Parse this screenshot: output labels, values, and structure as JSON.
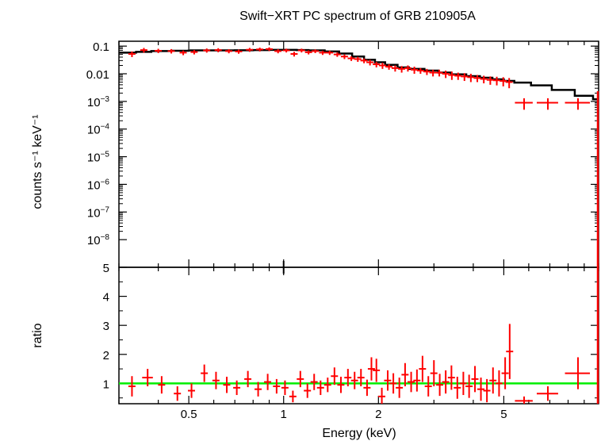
{
  "chart_data": [
    {
      "type": "scatter",
      "title": "Swift−XRT PC spectrum of GRB 210905A",
      "xlabel": "Energy (keV)",
      "ylabel": "counts s⁻¹ keV⁻¹",
      "xscale": "log",
      "yscale": "log",
      "xlim": [
        0.3,
        10
      ],
      "ylim": [
        1e-09,
        0.15
      ],
      "x_ticks": [
        0.5,
        1,
        2,
        5
      ],
      "x_tick_labels": [
        "0.5",
        "1",
        "2",
        "5"
      ],
      "y_ticks": [
        0.1,
        0.01,
        0.001,
        0.0001,
        1e-05,
        1e-06,
        1e-07,
        1e-08
      ],
      "y_tick_labels": [
        {
          "base": "0.1",
          "exp": ""
        },
        {
          "base": "0.01",
          "exp": ""
        },
        {
          "base": "10",
          "exp": "−3"
        },
        {
          "base": "10",
          "exp": "−4"
        },
        {
          "base": "10",
          "exp": "−5"
        },
        {
          "base": "10",
          "exp": "−6"
        },
        {
          "base": "10",
          "exp": "−7"
        },
        {
          "base": "10",
          "exp": "−8"
        }
      ],
      "series": [
        {
          "kind": "data",
          "color": "#ff0000",
          "points": [
            [
              0.33,
              0.052,
              0.02,
              0.012
            ],
            [
              0.36,
              0.072,
              0.02,
              0.014
            ],
            [
              0.4,
              0.068,
              0.02,
              0.012
            ],
            [
              0.44,
              0.066,
              0.02,
              0.012
            ],
            [
              0.48,
              0.058,
              0.02,
              0.011
            ],
            [
              0.52,
              0.061,
              0.02,
              0.011
            ],
            [
              0.57,
              0.07,
              0.02,
              0.012
            ],
            [
              0.62,
              0.072,
              0.02,
              0.012
            ],
            [
              0.67,
              0.066,
              0.02,
              0.011
            ],
            [
              0.72,
              0.064,
              0.02,
              0.011
            ],
            [
              0.78,
              0.074,
              0.02,
              0.012
            ],
            [
              0.84,
              0.076,
              0.02,
              0.012
            ],
            [
              0.9,
              0.078,
              0.02,
              0.012
            ],
            [
              0.96,
              0.066,
              0.02,
              0.011
            ],
            [
              1.02,
              0.07,
              0.02,
              0.011
            ],
            [
              1.08,
              0.052,
              0.02,
              0.01
            ],
            [
              1.14,
              0.07,
              0.02,
              0.011
            ],
            [
              1.2,
              0.06,
              0.02,
              0.01
            ],
            [
              1.26,
              0.066,
              0.02,
              0.01
            ],
            [
              1.33,
              0.058,
              0.02,
              0.01
            ],
            [
              1.4,
              0.058,
              0.02,
              0.01
            ],
            [
              1.48,
              0.05,
              0.02,
              0.009
            ],
            [
              1.56,
              0.042,
              0.02,
              0.008
            ],
            [
              1.64,
              0.036,
              0.02,
              0.007
            ],
            [
              1.72,
              0.034,
              0.02,
              0.007
            ],
            [
              1.8,
              0.03,
              0.02,
              0.006
            ],
            [
              1.88,
              0.026,
              0.02,
              0.006
            ],
            [
              1.97,
              0.022,
              0.02,
              0.005
            ],
            [
              2.06,
              0.02,
              0.02,
              0.005
            ],
            [
              2.16,
              0.018,
              0.02,
              0.004
            ],
            [
              2.26,
              0.016,
              0.02,
              0.004
            ],
            [
              2.37,
              0.015,
              0.02,
              0.004
            ],
            [
              2.48,
              0.016,
              0.02,
              0.004
            ],
            [
              2.6,
              0.014,
              0.02,
              0.004
            ],
            [
              2.72,
              0.013,
              0.02,
              0.003
            ],
            [
              2.85,
              0.012,
              0.02,
              0.003
            ],
            [
              2.98,
              0.011,
              0.02,
              0.003
            ],
            [
              3.12,
              0.011,
              0.02,
              0.003
            ],
            [
              3.27,
              0.01,
              0.02,
              0.003
            ],
            [
              3.42,
              0.009,
              0.02,
              0.003
            ],
            [
              3.58,
              0.0085,
              0.02,
              0.0025
            ],
            [
              3.75,
              0.008,
              0.02,
              0.0025
            ],
            [
              3.93,
              0.0075,
              0.02,
              0.0025
            ],
            [
              4.12,
              0.007,
              0.02,
              0.002
            ],
            [
              4.32,
              0.0065,
              0.02,
              0.002
            ],
            [
              4.53,
              0.006,
              0.02,
              0.002
            ],
            [
              4.75,
              0.0058,
              0.02,
              0.002
            ],
            [
              4.98,
              0.0055,
              0.02,
              0.002
            ],
            [
              5.2,
              0.005,
              0.02,
              0.002
            ],
            [
              5.8,
              0.0009,
              0.05,
              0.0004
            ],
            [
              6.9,
              0.0009,
              0.06,
              0.0004
            ],
            [
              8.6,
              0.0009,
              0.07,
              0.0004
            ]
          ]
        },
        {
          "kind": "model",
          "color": "#000000",
          "steps": [
            [
              0.3,
              0.058
            ],
            [
              0.34,
              0.062
            ],
            [
              0.38,
              0.066
            ],
            [
              0.44,
              0.068
            ],
            [
              0.5,
              0.07
            ],
            [
              0.56,
              0.07
            ],
            [
              0.62,
              0.07
            ],
            [
              0.7,
              0.071
            ],
            [
              0.8,
              0.072
            ],
            [
              0.9,
              0.073
            ],
            [
              1.0,
              0.073
            ],
            [
              1.1,
              0.072
            ],
            [
              1.2,
              0.07
            ],
            [
              1.35,
              0.064
            ],
            [
              1.5,
              0.054
            ],
            [
              1.65,
              0.042
            ],
            [
              1.8,
              0.032
            ],
            [
              1.95,
              0.026
            ],
            [
              2.1,
              0.021
            ],
            [
              2.3,
              0.017
            ],
            [
              2.5,
              0.015
            ],
            [
              2.8,
              0.013
            ],
            [
              3.1,
              0.011
            ],
            [
              3.4,
              0.0095
            ],
            [
              3.8,
              0.0082
            ],
            [
              4.2,
              0.0072
            ],
            [
              4.6,
              0.0063
            ],
            [
              5.0,
              0.0055
            ],
            [
              5.4,
              0.0048
            ],
            [
              6.1,
              0.0038
            ],
            [
              7.1,
              0.0026
            ],
            [
              8.4,
              0.0016
            ],
            [
              9.6,
              0.0012
            ],
            [
              10.0,
              0.0012
            ]
          ]
        }
      ]
    },
    {
      "type": "scatter",
      "xlabel": "Energy (keV)",
      "ylabel": "ratio",
      "xscale": "log",
      "xlim": [
        0.3,
        10
      ],
      "ylim": [
        0.3,
        5
      ],
      "y_ticks": [
        1,
        2,
        3,
        4,
        5
      ],
      "y_tick_labels": [
        "1",
        "2",
        "3",
        "4",
        "5"
      ],
      "reference_line": {
        "y": 1,
        "color": "#00ee00"
      },
      "series": [
        {
          "kind": "ratio",
          "color": "#ff0000",
          "points": [
            [
              0.33,
              0.9,
              0.02,
              0.35
            ],
            [
              0.37,
              1.2,
              0.03,
              0.3
            ],
            [
              0.41,
              0.95,
              0.02,
              0.3
            ],
            [
              0.46,
              0.65,
              0.02,
              0.25
            ],
            [
              0.51,
              0.75,
              0.02,
              0.25
            ],
            [
              0.56,
              1.35,
              0.02,
              0.3
            ],
            [
              0.61,
              1.1,
              0.02,
              0.3
            ],
            [
              0.66,
              0.95,
              0.02,
              0.28
            ],
            [
              0.71,
              0.85,
              0.02,
              0.25
            ],
            [
              0.77,
              1.15,
              0.02,
              0.28
            ],
            [
              0.83,
              0.8,
              0.02,
              0.25
            ],
            [
              0.89,
              1.05,
              0.02,
              0.28
            ],
            [
              0.95,
              0.9,
              0.02,
              0.25
            ],
            [
              1.01,
              0.85,
              0.02,
              0.25
            ],
            [
              1.07,
              0.55,
              0.02,
              0.2
            ],
            [
              1.13,
              1.15,
              0.02,
              0.28
            ],
            [
              1.19,
              0.75,
              0.02,
              0.25
            ],
            [
              1.25,
              1.05,
              0.02,
              0.28
            ],
            [
              1.31,
              0.85,
              0.02,
              0.25
            ],
            [
              1.38,
              0.95,
              0.02,
              0.25
            ],
            [
              1.45,
              1.25,
              0.02,
              0.3
            ],
            [
              1.52,
              0.95,
              0.02,
              0.28
            ],
            [
              1.6,
              1.2,
              0.02,
              0.3
            ],
            [
              1.68,
              1.1,
              0.02,
              0.3
            ],
            [
              1.76,
              1.2,
              0.02,
              0.3
            ],
            [
              1.84,
              0.85,
              0.02,
              0.28
            ],
            [
              1.9,
              1.5,
              0.02,
              0.4
            ],
            [
              1.97,
              1.45,
              0.02,
              0.4
            ],
            [
              2.05,
              0.55,
              0.02,
              0.3
            ],
            [
              2.14,
              1.1,
              0.02,
              0.35
            ],
            [
              2.23,
              1.0,
              0.02,
              0.35
            ],
            [
              2.33,
              0.85,
              0.02,
              0.35
            ],
            [
              2.43,
              1.3,
              0.02,
              0.4
            ],
            [
              2.54,
              1.05,
              0.02,
              0.35
            ],
            [
              2.65,
              1.1,
              0.02,
              0.38
            ],
            [
              2.76,
              1.5,
              0.02,
              0.45
            ],
            [
              2.88,
              0.9,
              0.02,
              0.35
            ],
            [
              3.0,
              1.35,
              0.02,
              0.45
            ],
            [
              3.13,
              0.95,
              0.02,
              0.38
            ],
            [
              3.27,
              1.05,
              0.02,
              0.4
            ],
            [
              3.41,
              1.2,
              0.02,
              0.42
            ],
            [
              3.56,
              0.85,
              0.02,
              0.38
            ],
            [
              3.72,
              1.0,
              0.02,
              0.4
            ],
            [
              3.88,
              0.9,
              0.02,
              0.4
            ],
            [
              4.05,
              1.15,
              0.02,
              0.45
            ],
            [
              4.23,
              0.8,
              0.02,
              0.4
            ],
            [
              4.42,
              0.75,
              0.02,
              0.4
            ],
            [
              4.62,
              1.1,
              0.02,
              0.45
            ],
            [
              4.83,
              1.0,
              0.02,
              0.45
            ],
            [
              5.05,
              1.35,
              0.02,
              0.55
            ],
            [
              5.22,
              2.1,
              0.02,
              0.95
            ],
            [
              5.8,
              0.4,
              0.05,
              0.15
            ],
            [
              6.9,
              0.65,
              0.06,
              0.25
            ],
            [
              8.6,
              1.35,
              0.07,
              0.55
            ]
          ]
        }
      ]
    }
  ]
}
